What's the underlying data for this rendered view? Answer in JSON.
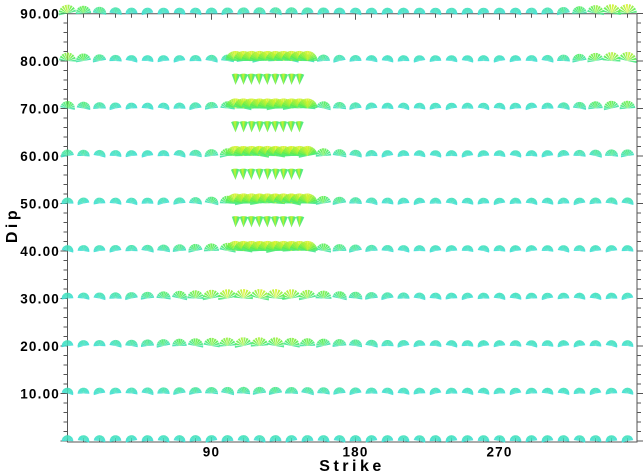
{
  "chart_data": {
    "type": "scatter",
    "glyph": "radiation-pattern-fan",
    "title": "",
    "xlabel": "Strike",
    "ylabel": "Dip",
    "xlim": [
      0,
      356
    ],
    "ylim": [
      0,
      90
    ],
    "grid": "off",
    "x_ticks": [
      {
        "value": 90,
        "label": "90"
      },
      {
        "value": 180,
        "label": "180"
      },
      {
        "value": 270,
        "label": "270"
      }
    ],
    "x_minor_step": 10,
    "y_ticks": [
      {
        "value": 90,
        "label": "90.00"
      },
      {
        "value": 80,
        "label": "80.00"
      },
      {
        "value": 70,
        "label": "70.00"
      },
      {
        "value": 60,
        "label": "60.00"
      },
      {
        "value": 50,
        "label": "50.00"
      },
      {
        "value": 40,
        "label": "40.00"
      },
      {
        "value": 30,
        "label": "30.00"
      },
      {
        "value": 20,
        "label": "20.00"
      },
      {
        "value": 10,
        "label": "10.00"
      }
    ],
    "y_minor_step": 2,
    "main_rows": {
      "dips": [
        0,
        10,
        20,
        30,
        40,
        50,
        60,
        70,
        80,
        90
      ],
      "strike_start": 0,
      "strike_end": 350,
      "strike_step": 10,
      "spread_deg": 165,
      "base_radius": 5.2,
      "radius_gain": 4.2
    },
    "cluster_rows": {
      "dips": [
        40,
        50,
        60,
        70,
        80
      ],
      "strike_start": 105,
      "strike_end": 150,
      "strike_step": 5,
      "radius": 10,
      "spread_deg": 158,
      "level": 1.0
    },
    "intermediate_rows": {
      "dips": [
        45,
        55,
        65,
        75
      ],
      "strike_start": 105,
      "strike_end": 145,
      "strike_step": 5,
      "radius": 11,
      "spread_deg": 34,
      "level": 0.92
    },
    "base_level": 0.13,
    "tilt_amp": 13,
    "hotspots": [
      {
        "strike": 130,
        "dip": 58,
        "sigma_strike": 24,
        "sigma_dip": 15,
        "amp": 1.0
      },
      {
        "strike": 115,
        "dip": 27,
        "sigma_strike": 40,
        "sigma_dip": 10,
        "amp": 0.85
      },
      {
        "strike": 347,
        "dip": 88,
        "sigma_strike": 20,
        "sigma_dip": 16,
        "amp": 0.9
      }
    ],
    "colors": {
      "cyan": "#3BDDE2",
      "green": "#55EE55",
      "yellow": "#D9F22C",
      "frame": "#555555",
      "text": "#000000"
    }
  }
}
